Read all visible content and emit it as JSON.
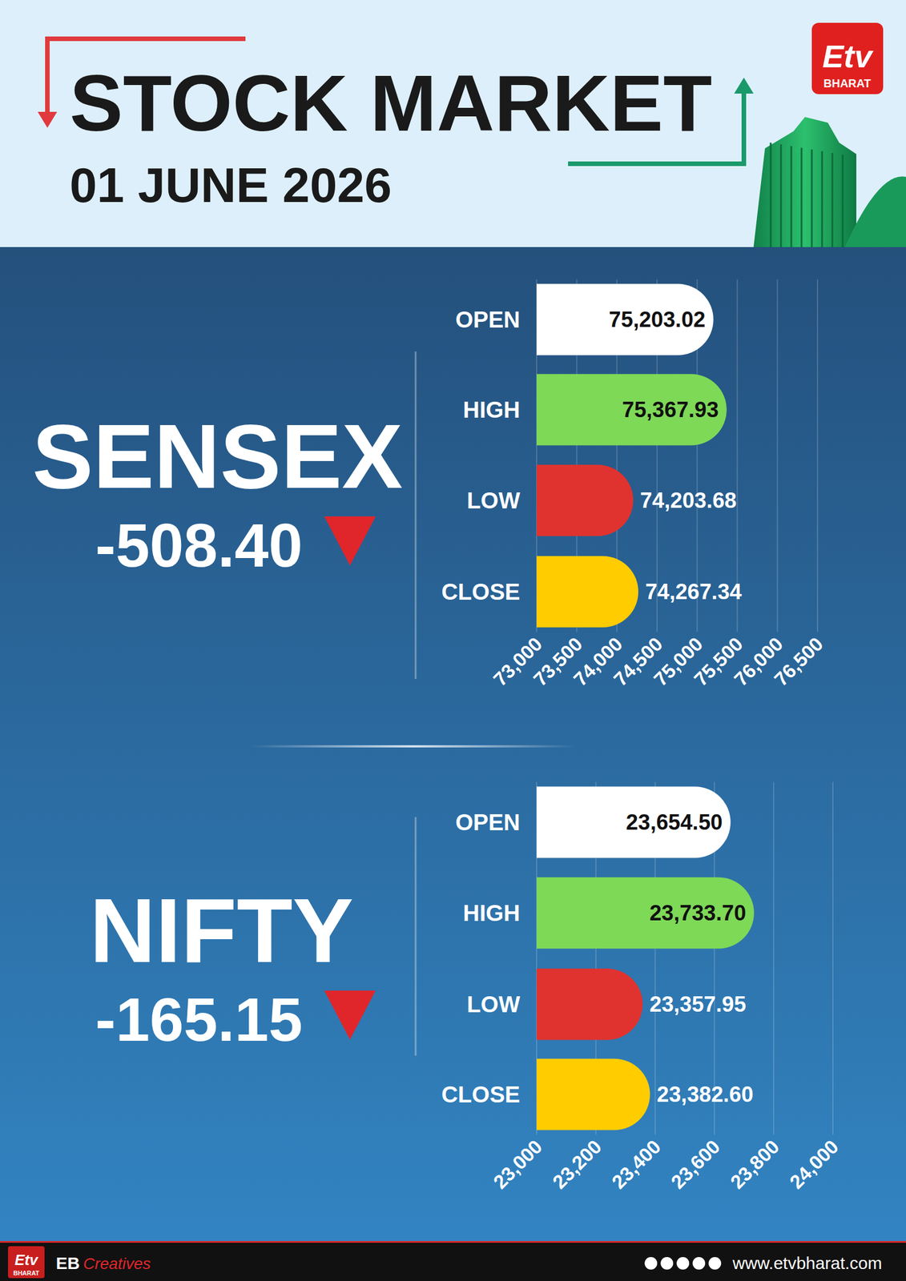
{
  "header": {
    "title": "STOCK MARKET",
    "date": "01 JUNE 2026"
  },
  "brand": {
    "logo": "Etv",
    "sub": "BHARAT"
  },
  "footer": {
    "credit": "EB",
    "credit_script": "Creatives",
    "url": "www.etvbharat.com"
  },
  "chart_data": [
    {
      "type": "bar",
      "orientation": "horizontal",
      "title": "SENSEX",
      "subtitle": "-508.40",
      "categories": [
        "OPEN",
        "HIGH",
        "LOW",
        "CLOSE"
      ],
      "values": [
        75203.02,
        75367.93,
        74203.68,
        74267.34
      ],
      "value_labels": [
        "75,203.02",
        "75,367.93",
        "74,203.68",
        "74,267.34"
      ],
      "colors": [
        "#ffffff",
        "#7ed957",
        "#e0332f",
        "#ffcc00"
      ],
      "xlim": [
        73000,
        76500
      ],
      "xticks": [
        {
          "value": 73000,
          "label": "73,000"
        },
        {
          "value": 73500,
          "label": "73,500"
        },
        {
          "value": 74000,
          "label": "74,000"
        },
        {
          "value": 74500,
          "label": "74,500"
        },
        {
          "value": 75000,
          "label": "75,000"
        },
        {
          "value": 75500,
          "label": "75,500"
        },
        {
          "value": 76000,
          "label": "76,000"
        },
        {
          "value": 76500,
          "label": "76,500"
        }
      ],
      "grid": true,
      "data_labels": true,
      "tick_labels": "x"
    },
    {
      "type": "bar",
      "orientation": "horizontal",
      "title": "NIFTY",
      "subtitle": "-165.15",
      "categories": [
        "OPEN",
        "HIGH",
        "LOW",
        "CLOSE"
      ],
      "values": [
        23654.5,
        23733.7,
        23357.95,
        23382.6
      ],
      "value_labels": [
        "23,654.50",
        "23,733.70",
        "23,357.95",
        "23,382.60"
      ],
      "colors": [
        "#ffffff",
        "#7ed957",
        "#e0332f",
        "#ffcc00"
      ],
      "xlim": [
        23000,
        24000
      ],
      "xticks": [
        {
          "value": 23000,
          "label": "23,000"
        },
        {
          "value": 23200,
          "label": "23,200"
        },
        {
          "value": 23400,
          "label": "23,400"
        },
        {
          "value": 23600,
          "label": "23,600"
        },
        {
          "value": 23800,
          "label": "23,800"
        },
        {
          "value": 24000,
          "label": "24,000"
        }
      ],
      "grid": true,
      "data_labels": true,
      "tick_labels": "x"
    }
  ]
}
